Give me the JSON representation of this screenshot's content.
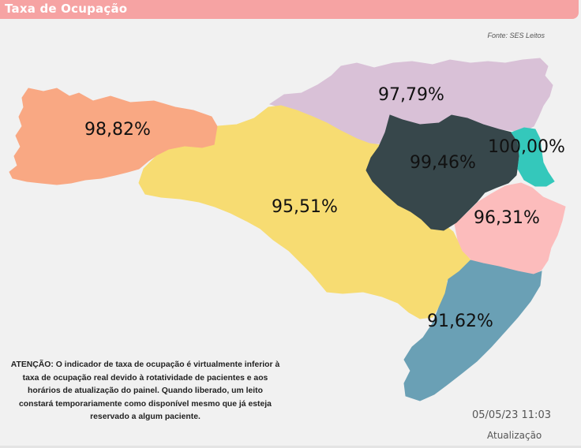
{
  "header": {
    "title": "Taxa de Ocupação"
  },
  "source": "Fonte: SES Leitos",
  "regions": [
    {
      "id": "extremo-oeste",
      "value": "98,82%",
      "color": "#f9a883"
    },
    {
      "id": "planalto-norte",
      "value": "97,79%",
      "color": "#d9c1d7"
    },
    {
      "id": "meio-oeste-serra",
      "value": "95,51%",
      "color": "#f7dc72"
    },
    {
      "id": "vale-itajai",
      "value": "99,46%",
      "color": "#37474b"
    },
    {
      "id": "foz-itajai",
      "value": "100,00%",
      "color": "#34c8bb"
    },
    {
      "id": "grande-florianopolis",
      "value": "96,31%",
      "color": "#fcbcbc"
    },
    {
      "id": "sul",
      "value": "91,62%",
      "color": "#6aa0b5"
    }
  ],
  "notice": "ATENÇÃO: O indicador de taxa de ocupação é virtualmente inferior à taxa de ocupação real devido à rotatividade de pacientes e aos horários de atualização do painel.  Quando liberado, um leito constará temporariamente como disponível mesmo que já esteja reservado a algum paciente.",
  "update": {
    "datetime": "05/05/23 11:03",
    "label": "Atualização"
  }
}
